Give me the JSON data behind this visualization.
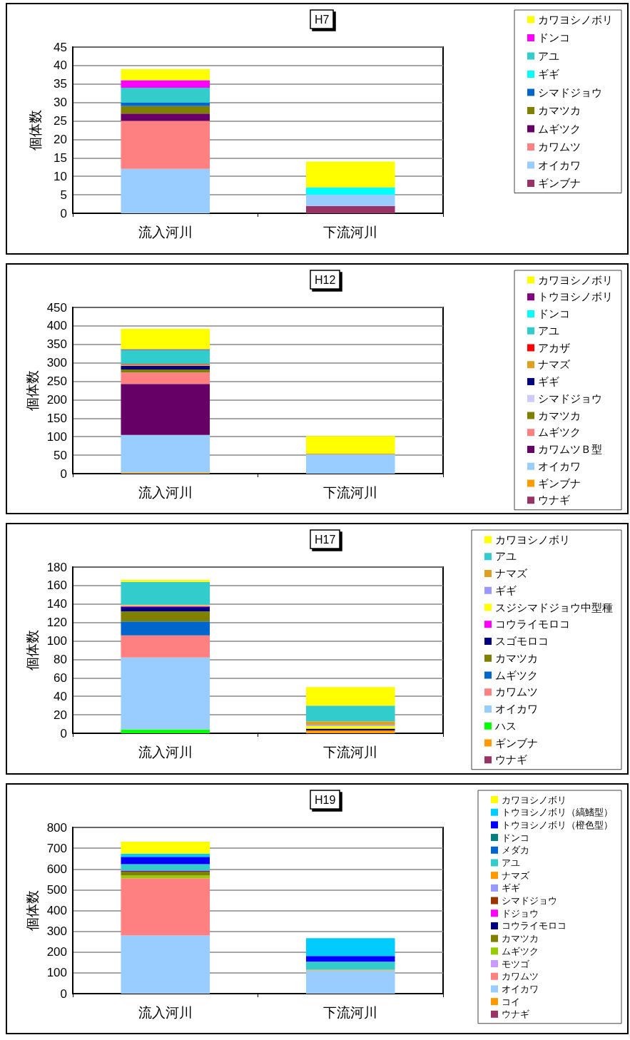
{
  "chart_data": [
    {
      "type": "bar",
      "stacked": true,
      "title": "H7",
      "ylabel": "個体数",
      "categories": [
        "流入河川",
        "下流河川"
      ],
      "ylim": [
        0,
        45
      ],
      "yticks": [
        0,
        5,
        10,
        15,
        20,
        25,
        30,
        35,
        40,
        45
      ],
      "grid": "y",
      "legend": "right",
      "series": [
        {
          "name": "ギンブナ",
          "color": "#993366",
          "values": [
            0,
            2
          ]
        },
        {
          "name": "オイカワ",
          "color": "#99ccff",
          "values": [
            12,
            3
          ]
        },
        {
          "name": "カワムツ",
          "color": "#ff8080",
          "values": [
            13,
            0
          ]
        },
        {
          "name": "ムギツク",
          "color": "#660066",
          "values": [
            2,
            0
          ]
        },
        {
          "name": "カマツカ",
          "color": "#808000",
          "values": [
            2,
            0
          ]
        },
        {
          "name": "シマドジョウ",
          "color": "#0066cc",
          "values": [
            1,
            0
          ]
        },
        {
          "name": "ギギ",
          "color": "#00ffff",
          "values": [
            0,
            2
          ]
        },
        {
          "name": "アユ",
          "color": "#33cccc",
          "values": [
            4,
            0
          ]
        },
        {
          "name": "ドンコ",
          "color": "#ff00ff",
          "values": [
            2,
            0
          ]
        },
        {
          "name": "カワヨシノボリ",
          "color": "#ffff00",
          "values": [
            3,
            7
          ]
        }
      ]
    },
    {
      "type": "bar",
      "stacked": true,
      "title": "H12",
      "ylabel": "個体数",
      "categories": [
        "流入河川",
        "下流河川"
      ],
      "ylim": [
        0,
        450
      ],
      "yticks": [
        0,
        50,
        100,
        150,
        200,
        250,
        300,
        350,
        400,
        450
      ],
      "grid": "y",
      "legend": "right",
      "series": [
        {
          "name": "ウナギ",
          "color": "#993366",
          "values": [
            0,
            0
          ]
        },
        {
          "name": "ギンブナ",
          "color": "#ff9900",
          "values": [
            3,
            0
          ]
        },
        {
          "name": "オイカワ",
          "color": "#99ccff",
          "values": [
            102,
            52
          ]
        },
        {
          "name": "カワムツＢ型",
          "color": "#660066",
          "values": [
            138,
            0
          ]
        },
        {
          "name": "ムギツク",
          "color": "#ff8080",
          "values": [
            31,
            0
          ]
        },
        {
          "name": "カマツカ",
          "color": "#808000",
          "values": [
            8,
            0
          ]
        },
        {
          "name": "シマドジョウ",
          "color": "#ccccff",
          "values": [
            null,
            0
          ]
        },
        {
          "name": "ギギ",
          "color": "#000080",
          "values": [
            10,
            0
          ]
        },
        {
          "name": "ナマズ",
          "color": "#dda020",
          "values": [
            3,
            2
          ]
        },
        {
          "name": "アカザ",
          "color": "#ff0000",
          "values": [
            2,
            0
          ]
        },
        {
          "name": "アユ",
          "color": "#33cccc",
          "values": [
            38,
            0
          ]
        },
        {
          "name": "ドンコ",
          "color": "#00ffff",
          "values": [
            0,
            0
          ]
        },
        {
          "name": "トウヨシノボリ",
          "color": "#800080",
          "values": [
            2,
            0
          ]
        },
        {
          "name": "カワヨシノボリ",
          "color": "#ffff00",
          "values": [
            55,
            48
          ]
        }
      ]
    },
    {
      "type": "bar",
      "stacked": true,
      "title": "H17",
      "ylabel": "個体数",
      "categories": [
        "流入河川",
        "下流河川"
      ],
      "ylim": [
        0,
        180
      ],
      "yticks": [
        0,
        20,
        40,
        60,
        80,
        100,
        120,
        140,
        160,
        180
      ],
      "grid": "y",
      "legend": "right",
      "series": [
        {
          "name": "ウナギ",
          "color": "#993366",
          "values": [
            0,
            0
          ]
        },
        {
          "name": "ギンブナ",
          "color": "#ff9900",
          "values": [
            0,
            3
          ]
        },
        {
          "name": "ハス",
          "color": "#00ff00",
          "values": [
            4,
            0
          ]
        },
        {
          "name": "オイカワ",
          "color": "#99ccff",
          "values": [
            78,
            0
          ]
        },
        {
          "name": "カワムツ",
          "color": "#ff8080",
          "values": [
            24,
            0
          ]
        },
        {
          "name": "ムギツク",
          "color": "#0066cc",
          "values": [
            15,
            0
          ]
        },
        {
          "name": "カマツカ",
          "color": "#808000",
          "values": [
            11,
            0
          ]
        },
        {
          "name": "スゴモロコ",
          "color": "#000080",
          "values": [
            5,
            2
          ]
        },
        {
          "name": "コウライモロコ",
          "color": "#ff00ff",
          "values": [
            1,
            0
          ]
        },
        {
          "name": "スジシマドジョウ中型種",
          "color": "#ffff00",
          "values": [
            1,
            3
          ]
        },
        {
          "name": "ギギ",
          "color": "#9999ff",
          "values": [
            0,
            1
          ]
        },
        {
          "name": "ナマズ",
          "color": "#dda020",
          "values": [
            0,
            4
          ]
        },
        {
          "name": "アユ",
          "color": "#33cccc",
          "values": [
            25,
            17
          ]
        },
        {
          "name": "カワヨシノボリ",
          "color": "#ffff00",
          "values": [
            2,
            20
          ]
        }
      ]
    },
    {
      "type": "bar",
      "stacked": true,
      "title": "H19",
      "ylabel": "個体数",
      "categories": [
        "流入河川",
        "下流河川"
      ],
      "ylim": [
        0,
        800
      ],
      "yticks": [
        0,
        100,
        200,
        300,
        400,
        500,
        600,
        700,
        800
      ],
      "grid": "y",
      "legend": "right",
      "series": [
        {
          "name": "ウナギ",
          "color": "#993366",
          "values": [
            0,
            0
          ]
        },
        {
          "name": "コイ",
          "color": "#ff9900",
          "values": [
            0,
            0
          ]
        },
        {
          "name": "オイカワ",
          "color": "#99ccff",
          "values": [
            280,
            112
          ]
        },
        {
          "name": "カワムツ",
          "color": "#ff8080",
          "values": [
            275,
            0
          ]
        },
        {
          "name": "モツゴ",
          "color": "#cc99ff",
          "values": [
            0,
            0
          ]
        },
        {
          "name": "ムギツク",
          "color": "#99cc00",
          "values": [
            15,
            0
          ]
        },
        {
          "name": "カマツカ",
          "color": "#808000",
          "values": [
            18,
            0
          ]
        },
        {
          "name": "コウライモロコ",
          "color": "#000080",
          "values": [
            3,
            0
          ]
        },
        {
          "name": "ドジョウ",
          "color": "#ff00ff",
          "values": [
            2,
            0
          ]
        },
        {
          "name": "シマドジョウ",
          "color": "#993300",
          "values": [
            null,
            0
          ]
        },
        {
          "name": "ギギ",
          "color": "#9999ff",
          "values": [
            0,
            0
          ]
        },
        {
          "name": "ナマズ",
          "color": "#ff9900",
          "values": [
            0,
            3
          ]
        },
        {
          "name": "アユ",
          "color": "#33cccc",
          "values": [
            30,
            39
          ]
        },
        {
          "name": "メダカ",
          "color": "#0066cc",
          "values": [
            0,
            0
          ]
        },
        {
          "name": "ドンコ",
          "color": "#008080",
          "values": [
            0,
            0
          ]
        },
        {
          "name": "トウヨシノボリ（橙色型）",
          "color": "#0000ff",
          "values": [
            35,
            27
          ]
        },
        {
          "name": "トウヨシノボリ（縞鰭型）",
          "color": "#00ccff",
          "values": [
            15,
            86
          ]
        },
        {
          "name": "カワヨシノボリ",
          "color": "#ffff00",
          "values": [
            58,
            0
          ]
        }
      ]
    }
  ]
}
